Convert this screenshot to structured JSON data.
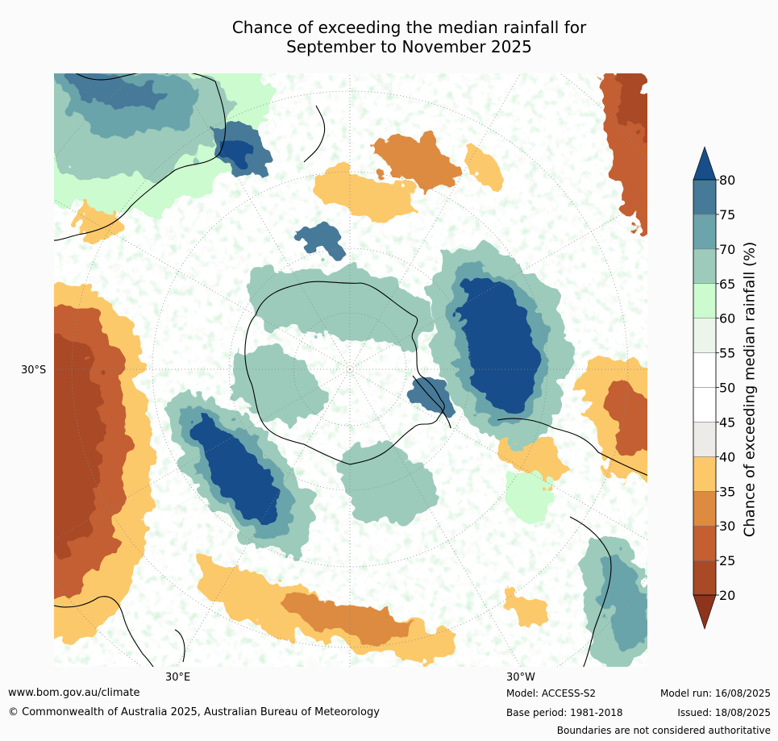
{
  "title_line1": "Chance of exceeding the median rainfall for",
  "title_line2": "September to November 2025",
  "axis": {
    "lat_label": "30°S",
    "lon_label_east": "30°E",
    "lon_label_west": "30°W"
  },
  "colorbar": {
    "title": "Chance of exceeding median rainfall (%)",
    "ticks": [
      "20",
      "25",
      "30",
      "35",
      "40",
      "45",
      "50",
      "55",
      "60",
      "65",
      "70",
      "75",
      "80"
    ],
    "colors": [
      "#8e341c",
      "#a94a27",
      "#c35f30",
      "#dc8b40",
      "#fcc96a",
      "#ecebe8",
      "#ffffff",
      "#ffffff",
      "#ebf5ec",
      "#cbfbcf",
      "#9ccbbb",
      "#6ba4ab",
      "#477a98",
      "#174e8a"
    ],
    "extend": "both"
  },
  "footer": {
    "website": "www.bom.gov.au/climate",
    "copyright": "© Commonwealth of Australia 2025, Australian Bureau of Meteorology",
    "model": "Model: ACCESS-S2",
    "base_period": "Base period: 1981-2018",
    "model_run": "Model run: 16/08/2025",
    "issued": "Issued: 18/08/2025",
    "disclaimer": "Boundaries are not considered authoritative"
  }
}
